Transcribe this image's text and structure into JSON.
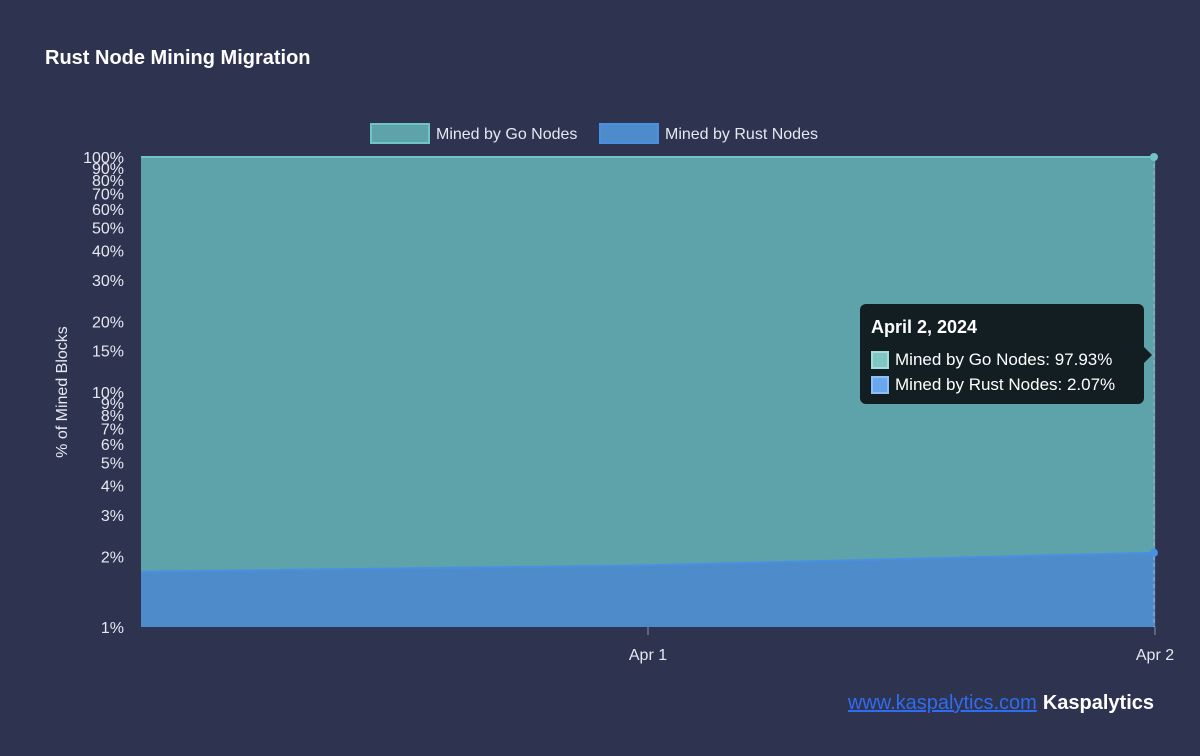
{
  "header": {
    "title": "Rust Node Mining Migration"
  },
  "colors": {
    "background": "#2e3350",
    "go_fill": "#5ea3aa",
    "go_line": "#6fc4c4",
    "rust_fill": "#4e8bcb",
    "rust_line": "#4a90e2",
    "tooltip_bg": "#121e22"
  },
  "chart_data": {
    "type": "area",
    "stacked": true,
    "x": [
      "2024-03-31",
      "2024-04-01",
      "2024-04-02"
    ],
    "series": [
      {
        "name": "Mined by Go Nodes",
        "values": [
          98.28,
          98.17,
          97.93
        ]
      },
      {
        "name": "Mined by Rust Nodes",
        "values": [
          1.72,
          1.83,
          2.07
        ]
      }
    ],
    "x_ticks": [
      {
        "x": "2024-04-01",
        "label": "Apr 1"
      },
      {
        "x": "2024-04-02",
        "label": "Apr 2"
      }
    ],
    "y_scale": "log",
    "ylim": [
      1,
      100
    ],
    "y_ticks": [
      {
        "v": 1,
        "label": "1%"
      },
      {
        "v": 2,
        "label": "2%"
      },
      {
        "v": 3,
        "label": "3%"
      },
      {
        "v": 4,
        "label": "4%"
      },
      {
        "v": 5,
        "label": "5%"
      },
      {
        "v": 6,
        "label": "6%"
      },
      {
        "v": 7,
        "label": "7%"
      },
      {
        "v": 8,
        "label": "8%"
      },
      {
        "v": 9,
        "label": "9%"
      },
      {
        "v": 10,
        "label": "10%"
      },
      {
        "v": 15,
        "label": "15%"
      },
      {
        "v": 20,
        "label": "20%"
      },
      {
        "v": 30,
        "label": "30%"
      },
      {
        "v": 40,
        "label": "40%"
      },
      {
        "v": 50,
        "label": "50%"
      },
      {
        "v": 60,
        "label": "60%"
      },
      {
        "v": 70,
        "label": "70%"
      },
      {
        "v": 80,
        "label": "80%"
      },
      {
        "v": 90,
        "label": "90%"
      },
      {
        "v": 100,
        "label": "100%"
      }
    ],
    "ylabel": "% of Mined Blocks",
    "xlabel": "",
    "legend": "top-center",
    "grid": true
  },
  "tooltip": {
    "title": "April 2, 2024",
    "rows": [
      {
        "label": "Mined by Go Nodes: 97.93%",
        "color": "#7fc7c4"
      },
      {
        "label": "Mined by Rust Nodes: 2.07%",
        "color": "#6aa8ee"
      }
    ]
  },
  "footer": {
    "link_text": "www.kaspalytics.com",
    "brand": "Kaspalytics"
  }
}
